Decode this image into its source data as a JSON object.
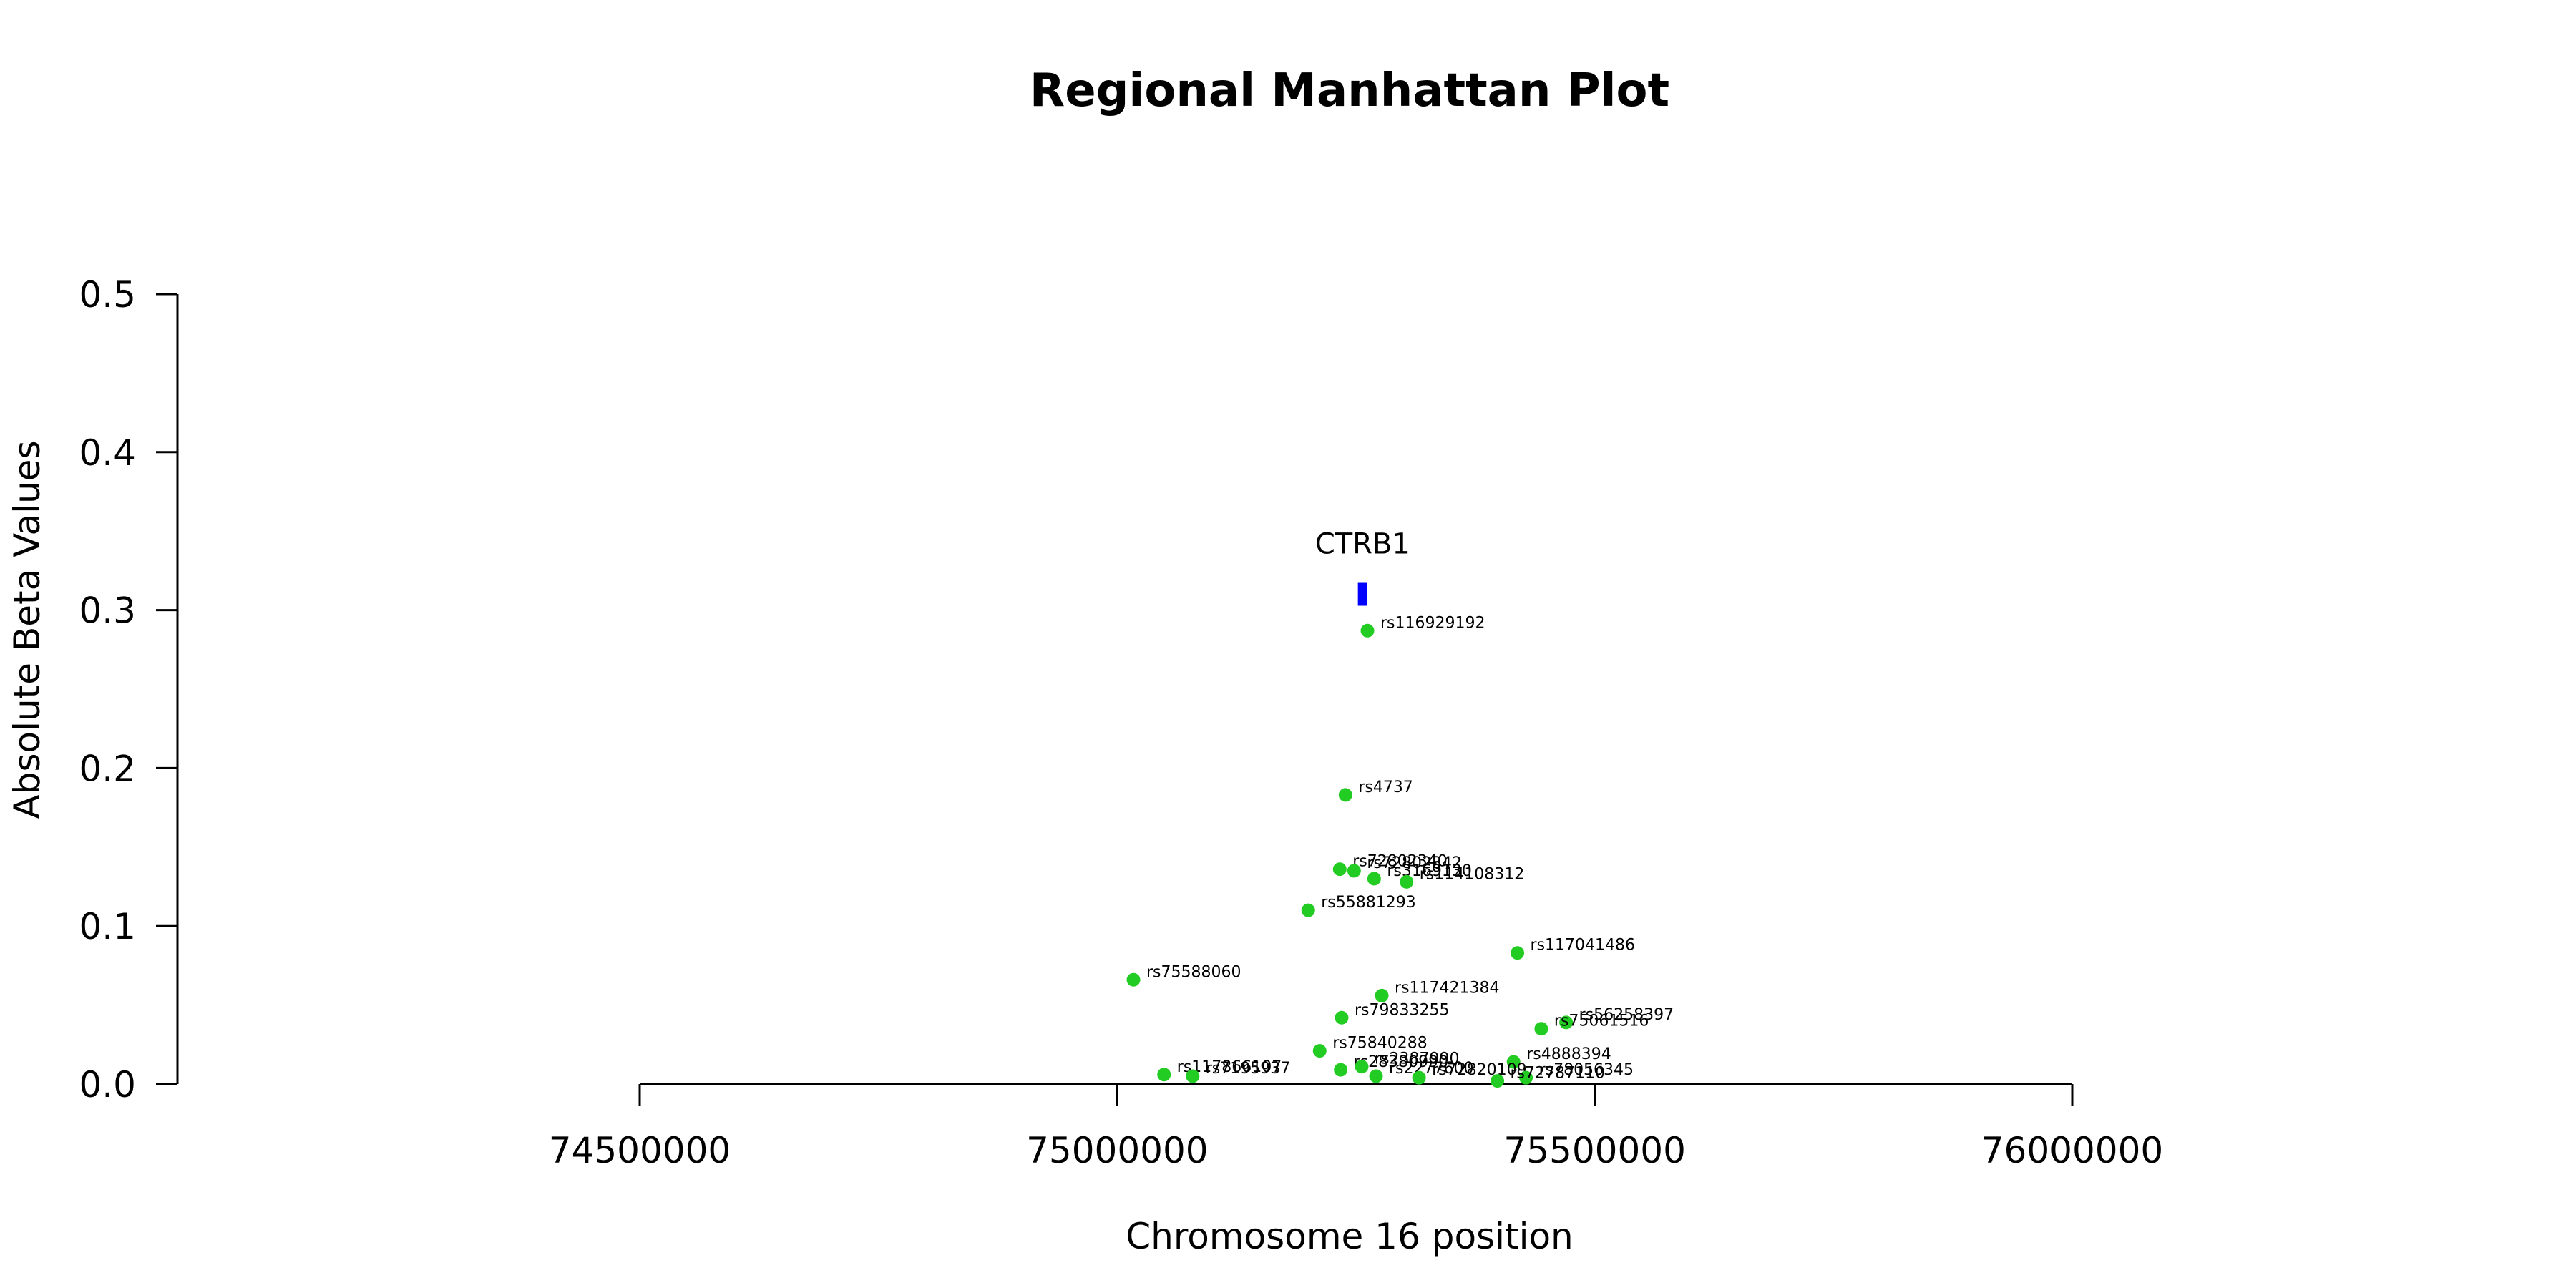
{
  "chart_data": {
    "type": "scatter",
    "title": "Regional Manhattan Plot",
    "xlabel": "Chromosome 16 position",
    "ylabel": "Absolute Beta Values",
    "xlim": [
      74500000,
      76000000
    ],
    "ylim": [
      0,
      0.5
    ],
    "x_ticks": [
      "74500000",
      "75000000",
      "75500000",
      "76000000"
    ],
    "y_ticks": [
      "0.0",
      "0.1",
      "0.2",
      "0.3",
      "0.4",
      "0.5"
    ],
    "point_color": "#22cc22",
    "gene_color": "#0000ff",
    "genes": [
      {
        "name": "CTRB1",
        "start": 75252000,
        "end": 75262000,
        "y": 0.31
      }
    ],
    "points": [
      {
        "label": "rs116929192",
        "x": 75262000,
        "y": 0.287
      },
      {
        "label": "rs4737",
        "x": 75239000,
        "y": 0.183
      },
      {
        "label": "rs72802340",
        "x": 75233000,
        "y": 0.136
      },
      {
        "label": "rs72802342",
        "x": 75248000,
        "y": 0.135
      },
      {
        "label": "rs3169130",
        "x": 75269000,
        "y": 0.13
      },
      {
        "label": "rs114108312",
        "x": 75303000,
        "y": 0.128
      },
      {
        "label": "rs55881293",
        "x": 75200000,
        "y": 0.11
      },
      {
        "label": "rs117041486",
        "x": 75419000,
        "y": 0.083
      },
      {
        "label": "rs75588060",
        "x": 75017000,
        "y": 0.066
      },
      {
        "label": "rs117421384",
        "x": 75277000,
        "y": 0.056
      },
      {
        "label": "rs79833255",
        "x": 75235000,
        "y": 0.042
      },
      {
        "label": "rs56258397",
        "x": 75470000,
        "y": 0.039
      },
      {
        "label": "rs75061516",
        "x": 75444000,
        "y": 0.035
      },
      {
        "label": "rs75840288",
        "x": 75212000,
        "y": 0.021
      },
      {
        "label": "rs4888394",
        "x": 75415000,
        "y": 0.014
      },
      {
        "label": "rs28380990",
        "x": 75234000,
        "y": 0.009
      },
      {
        "label": "rs2387990",
        "x": 75256000,
        "y": 0.011
      },
      {
        "label": "rs117866107",
        "x": 75049000,
        "y": 0.006
      },
      {
        "label": "rs7195937",
        "x": 75079000,
        "y": 0.005
      },
      {
        "label": "rs2277600",
        "x": 75271000,
        "y": 0.005
      },
      {
        "label": "rs72820109",
        "x": 75316000,
        "y": 0.004
      },
      {
        "label": "rs78056345",
        "x": 75428000,
        "y": 0.004
      },
      {
        "label": "rs72787110",
        "x": 75398000,
        "y": 0.002
      }
    ]
  }
}
